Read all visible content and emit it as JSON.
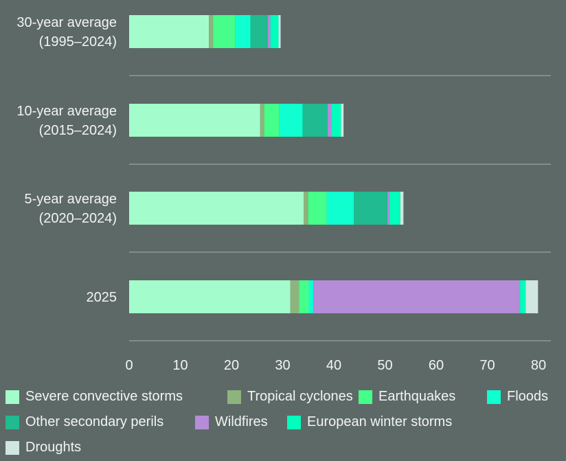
{
  "chart_data": {
    "type": "bar",
    "orientation": "horizontal",
    "stacked": true,
    "categories": [
      "30-year average\n(1995–2024)",
      "10-year average\n(2015–2024)",
      "5-year average\n(2020–2024)",
      "2025"
    ],
    "xlim": [
      0,
      80
    ],
    "xticks": [
      0,
      10,
      20,
      30,
      40,
      50,
      60,
      70,
      80
    ],
    "grid": "horizontal separators between bars",
    "legend_position": "bottom",
    "series": [
      {
        "name": "Severe convective storms",
        "color": "#a3fccb",
        "values": [
          15.6,
          25.6,
          34.1,
          31.5
        ]
      },
      {
        "name": "Tropical cyclones",
        "color": "#8db47d",
        "values": [
          0.8,
          0.8,
          0.9,
          1.7
        ]
      },
      {
        "name": "Earthquakes",
        "color": "#46ff8a",
        "values": [
          4.3,
          2.9,
          3.6,
          1.9
        ]
      },
      {
        "name": "Floods",
        "color": "#10ffd0",
        "values": [
          3.0,
          4.6,
          5.3,
          0.9
        ]
      },
      {
        "name": "Other secondary perils",
        "color": "#20bb90",
        "values": [
          3.4,
          4.9,
          6.6,
          0
        ]
      },
      {
        "name": "Wildfires",
        "color": "#b48cd8",
        "values": [
          0.5,
          0.7,
          0.4,
          40.4
        ]
      },
      {
        "name": "European winter storms",
        "color": "#00ffbc",
        "values": [
          1.6,
          1.9,
          2.1,
          1.1
        ]
      },
      {
        "name": "Droughts",
        "color": "#d0e6e0",
        "values": [
          0.4,
          0.5,
          0.6,
          2.4
        ]
      }
    ]
  }
}
